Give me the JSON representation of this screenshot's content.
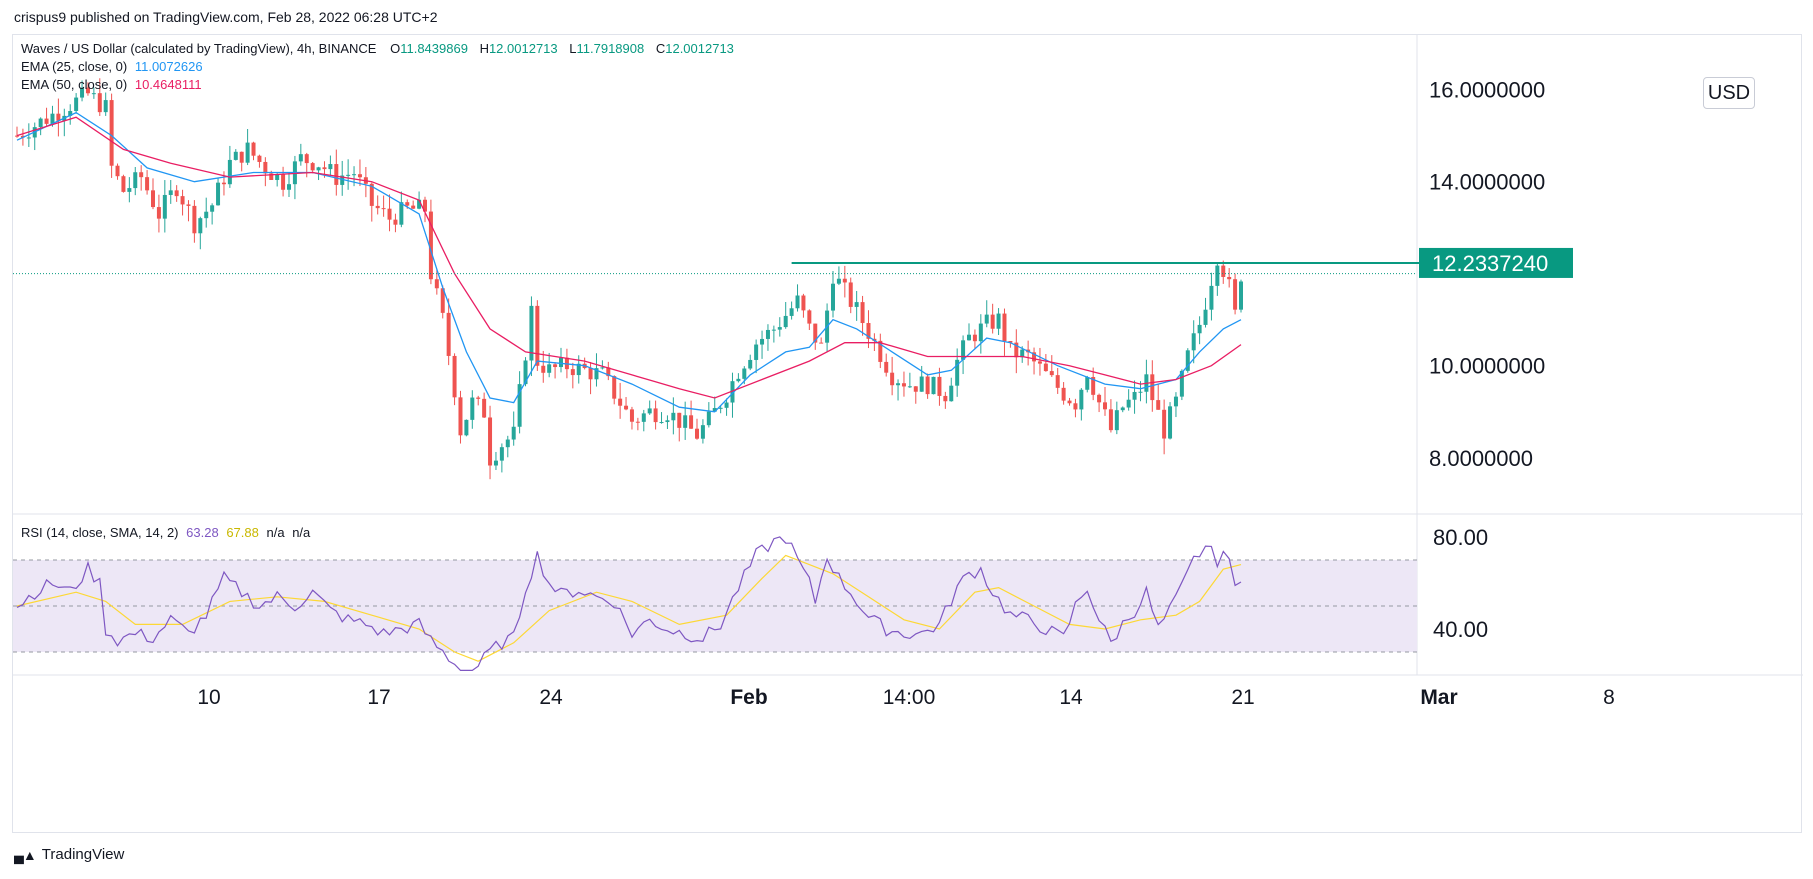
{
  "publish_note": "crispus9 published on TradingView.com, Feb 28, 2022 06:28 UTC+2",
  "legend": {
    "symbol": "Waves / US Dollar (calculated by TradingView), 4h, BINANCE",
    "open_label": "O",
    "open": "11.8439869",
    "high_label": "H",
    "high": "12.0012713",
    "low_label": "L",
    "low": "11.7918908",
    "close_label": "C",
    "close": "12.0012713",
    "ema25_label": "EMA (25, close, 0)",
    "ema25_value": "11.0072626",
    "ema50_label": "EMA (50, close, 0)",
    "ema50_value": "10.4648111",
    "rsi_label": "RSI (14, close, SMA, 14, 2)",
    "rsi_value": "63.28",
    "rsi_ma_value": "67.88",
    "na1": "n/a",
    "na2": "n/a"
  },
  "currency": "USD",
  "resistance_label": "12.2337240",
  "footer_logo": "TradingView",
  "colors": {
    "up": "#26a69a",
    "down": "#ef5350",
    "ema25": "#2196f3",
    "ema50": "#e91e63",
    "resistance": "#089981",
    "rsi": "#7e57c2",
    "rsi_ma": "#fdd835",
    "rsi_band": "#ede7f6"
  },
  "chart_data": {
    "type": "candlestick",
    "price_axis": {
      "ticks": [
        "16.0000000",
        "14.0000000",
        "10.0000000",
        "8.0000000"
      ],
      "tick_values": [
        16,
        14,
        10,
        8
      ]
    },
    "time_axis": [
      "10",
      "17",
      "24",
      "Feb",
      "14:00",
      "14",
      "21",
      "Mar",
      "8"
    ],
    "resistance": 12.233724,
    "close_price": 12.0012713,
    "price_ylim": [
      6.8,
      17.1
    ],
    "price_path": [
      [
        0,
        15.0
      ],
      [
        4,
        15.3
      ],
      [
        8,
        15.6
      ],
      [
        12,
        15.9
      ],
      [
        15,
        15.6
      ],
      [
        16,
        14.3
      ],
      [
        18,
        13.8
      ],
      [
        21,
        14.1
      ],
      [
        24,
        13.3
      ],
      [
        27,
        13.9
      ],
      [
        30,
        13.1
      ],
      [
        33,
        13.5
      ],
      [
        36,
        14.4
      ],
      [
        39,
        14.7
      ],
      [
        42,
        14.3
      ],
      [
        45,
        14.0
      ],
      [
        48,
        14.5
      ],
      [
        51,
        14.4
      ],
      [
        54,
        14.1
      ],
      [
        57,
        14.2
      ],
      [
        60,
        13.5
      ],
      [
        63,
        13.2
      ],
      [
        66,
        13.4
      ],
      [
        69,
        13.4
      ],
      [
        70,
        12.0
      ],
      [
        72,
        11.0
      ],
      [
        74,
        9.5
      ],
      [
        75,
        8.6
      ],
      [
        77,
        9.2
      ],
      [
        79,
        9.0
      ],
      [
        80,
        8.0
      ],
      [
        82,
        8.3
      ],
      [
        84,
        8.5
      ],
      [
        86,
        10.3
      ],
      [
        87,
        11.2
      ],
      [
        88,
        10.1
      ],
      [
        90,
        9.9
      ],
      [
        93,
        10.0
      ],
      [
        96,
        9.9
      ],
      [
        99,
        9.8
      ],
      [
        102,
        9.2
      ],
      [
        104,
        8.8
      ],
      [
        107,
        9.0
      ],
      [
        110,
        9.0
      ],
      [
        113,
        8.7
      ],
      [
        115,
        8.5
      ],
      [
        117,
        8.8
      ],
      [
        120,
        9.4
      ],
      [
        122,
        9.9
      ],
      [
        125,
        10.5
      ],
      [
        128,
        10.8
      ],
      [
        130,
        11.1
      ],
      [
        132,
        11.4
      ],
      [
        134,
        10.8
      ],
      [
        136,
        10.4
      ],
      [
        137,
        11.2
      ],
      [
        138,
        12.0
      ],
      [
        140,
        11.6
      ],
      [
        142,
        11.2
      ],
      [
        145,
        10.5
      ],
      [
        148,
        9.8
      ],
      [
        151,
        9.6
      ],
      [
        154,
        9.6
      ],
      [
        157,
        9.4
      ],
      [
        159,
        10.1
      ],
      [
        161,
        10.6
      ],
      [
        164,
        10.9
      ],
      [
        166,
        11.0
      ],
      [
        168,
        10.3
      ],
      [
        171,
        10.2
      ],
      [
        174,
        9.8
      ],
      [
        177,
        9.4
      ],
      [
        179,
        9.2
      ],
      [
        181,
        9.9
      ],
      [
        183,
        9.2
      ],
      [
        185,
        8.6
      ],
      [
        187,
        9.1
      ],
      [
        189,
        9.3
      ],
      [
        191,
        9.7
      ],
      [
        192,
        9.3
      ],
      [
        194,
        8.6
      ],
      [
        196,
        9.2
      ],
      [
        198,
        10.2
      ],
      [
        200,
        10.9
      ],
      [
        202,
        11.9
      ],
      [
        203,
        12.4
      ],
      [
        204,
        12.1
      ],
      [
        205,
        11.7
      ],
      [
        206,
        11.1
      ],
      [
        207,
        12.0
      ]
    ],
    "ema25": [
      [
        0,
        14.9
      ],
      [
        10,
        15.5
      ],
      [
        16,
        15.0
      ],
      [
        22,
        14.3
      ],
      [
        30,
        14.0
      ],
      [
        40,
        14.2
      ],
      [
        50,
        14.2
      ],
      [
        60,
        13.9
      ],
      [
        68,
        13.3
      ],
      [
        72,
        11.7
      ],
      [
        76,
        10.3
      ],
      [
        80,
        9.3
      ],
      [
        84,
        9.2
      ],
      [
        88,
        10.1
      ],
      [
        96,
        10.0
      ],
      [
        104,
        9.6
      ],
      [
        112,
        9.1
      ],
      [
        118,
        9.0
      ],
      [
        124,
        9.8
      ],
      [
        130,
        10.3
      ],
      [
        134,
        10.4
      ],
      [
        138,
        11.0
      ],
      [
        142,
        10.8
      ],
      [
        148,
        10.3
      ],
      [
        154,
        9.8
      ],
      [
        158,
        9.9
      ],
      [
        164,
        10.6
      ],
      [
        168,
        10.5
      ],
      [
        176,
        10.0
      ],
      [
        184,
        9.6
      ],
      [
        190,
        9.5
      ],
      [
        196,
        9.7
      ],
      [
        200,
        10.3
      ],
      [
        204,
        10.8
      ],
      [
        207,
        11.0
      ]
    ],
    "ema50": [
      [
        0,
        15.0
      ],
      [
        10,
        15.4
      ],
      [
        18,
        14.7
      ],
      [
        26,
        14.4
      ],
      [
        36,
        14.1
      ],
      [
        50,
        14.2
      ],
      [
        60,
        14.0
      ],
      [
        68,
        13.6
      ],
      [
        74,
        12.0
      ],
      [
        80,
        10.8
      ],
      [
        86,
        10.3
      ],
      [
        96,
        10.1
      ],
      [
        104,
        9.8
      ],
      [
        112,
        9.5
      ],
      [
        118,
        9.3
      ],
      [
        126,
        9.7
      ],
      [
        134,
        10.1
      ],
      [
        140,
        10.5
      ],
      [
        146,
        10.5
      ],
      [
        154,
        10.2
      ],
      [
        162,
        10.2
      ],
      [
        170,
        10.2
      ],
      [
        178,
        10.0
      ],
      [
        184,
        9.8
      ],
      [
        190,
        9.6
      ],
      [
        196,
        9.7
      ],
      [
        202,
        10.0
      ],
      [
        207,
        10.46
      ]
    ],
    "rsi_ylim": [
      20,
      90
    ],
    "rsi_ticks": [
      "80.00",
      "40.00"
    ],
    "rsi_tick_values": [
      80,
      40
    ],
    "rsi_band": [
      30,
      70
    ],
    "rsi": [
      [
        0,
        50
      ],
      [
        3,
        56
      ],
      [
        6,
        60
      ],
      [
        9,
        56
      ],
      [
        12,
        66
      ],
      [
        14,
        60
      ],
      [
        15,
        40
      ],
      [
        17,
        35
      ],
      [
        20,
        38
      ],
      [
        23,
        36
      ],
      [
        26,
        44
      ],
      [
        29,
        38
      ],
      [
        32,
        46
      ],
      [
        35,
        62
      ],
      [
        38,
        56
      ],
      [
        41,
        50
      ],
      [
        44,
        54
      ],
      [
        47,
        50
      ],
      [
        50,
        56
      ],
      [
        53,
        48
      ],
      [
        56,
        44
      ],
      [
        59,
        42
      ],
      [
        62,
        38
      ],
      [
        65,
        40
      ],
      [
        68,
        42
      ],
      [
        70,
        35
      ],
      [
        72,
        30
      ],
      [
        74,
        25
      ],
      [
        76,
        20
      ],
      [
        78,
        24
      ],
      [
        80,
        30
      ],
      [
        82,
        34
      ],
      [
        84,
        36
      ],
      [
        86,
        58
      ],
      [
        88,
        72
      ],
      [
        90,
        60
      ],
      [
        92,
        55
      ],
      [
        95,
        57
      ],
      [
        98,
        54
      ],
      [
        101,
        52
      ],
      [
        104,
        38
      ],
      [
        107,
        44
      ],
      [
        110,
        40
      ],
      [
        113,
        38
      ],
      [
        116,
        36
      ],
      [
        119,
        42
      ],
      [
        122,
        58
      ],
      [
        125,
        72
      ],
      [
        128,
        78
      ],
      [
        130,
        80
      ],
      [
        132,
        70
      ],
      [
        134,
        60
      ],
      [
        135,
        52
      ],
      [
        137,
        72
      ],
      [
        139,
        62
      ],
      [
        141,
        56
      ],
      [
        144,
        45
      ],
      [
        147,
        40
      ],
      [
        150,
        38
      ],
      [
        153,
        38
      ],
      [
        156,
        42
      ],
      [
        159,
        58
      ],
      [
        161,
        64
      ],
      [
        163,
        66
      ],
      [
        165,
        56
      ],
      [
        168,
        46
      ],
      [
        171,
        44
      ],
      [
        174,
        40
      ],
      [
        177,
        36
      ],
      [
        179,
        50
      ],
      [
        181,
        58
      ],
      [
        183,
        44
      ],
      [
        185,
        34
      ],
      [
        187,
        42
      ],
      [
        189,
        48
      ],
      [
        191,
        56
      ],
      [
        193,
        40
      ],
      [
        195,
        48
      ],
      [
        197,
        58
      ],
      [
        199,
        70
      ],
      [
        201,
        76
      ],
      [
        203,
        70
      ],
      [
        204,
        74
      ],
      [
        205,
        68
      ],
      [
        206,
        58
      ],
      [
        207,
        63
      ]
    ],
    "rsi_ma": [
      [
        0,
        50
      ],
      [
        10,
        56
      ],
      [
        15,
        52
      ],
      [
        20,
        42
      ],
      [
        28,
        42
      ],
      [
        36,
        52
      ],
      [
        44,
        54
      ],
      [
        52,
        52
      ],
      [
        60,
        46
      ],
      [
        68,
        40
      ],
      [
        74,
        30
      ],
      [
        78,
        26
      ],
      [
        84,
        34
      ],
      [
        90,
        48
      ],
      [
        98,
        56
      ],
      [
        104,
        52
      ],
      [
        112,
        42
      ],
      [
        120,
        46
      ],
      [
        126,
        62
      ],
      [
        130,
        72
      ],
      [
        134,
        68
      ],
      [
        138,
        64
      ],
      [
        144,
        54
      ],
      [
        150,
        44
      ],
      [
        156,
        40
      ],
      [
        162,
        56
      ],
      [
        166,
        58
      ],
      [
        172,
        50
      ],
      [
        178,
        42
      ],
      [
        184,
        40
      ],
      [
        190,
        44
      ],
      [
        196,
        46
      ],
      [
        200,
        52
      ],
      [
        204,
        66
      ],
      [
        207,
        68
      ]
    ]
  }
}
